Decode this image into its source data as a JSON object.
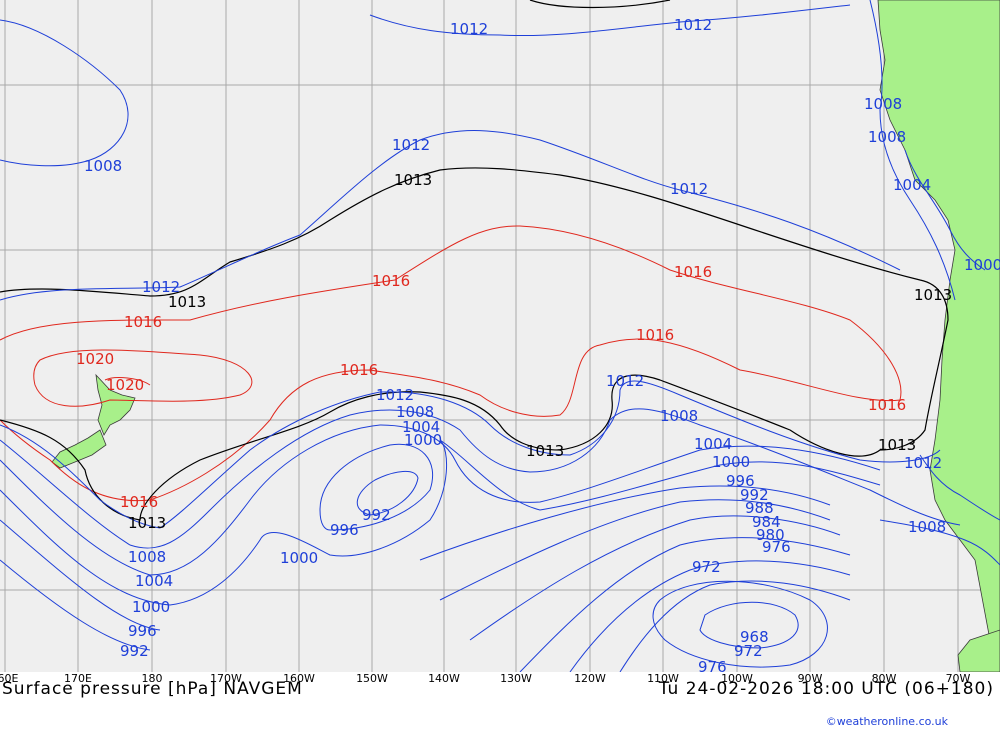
{
  "map": {
    "title": "Surface pressure [hPa] NAVGEM",
    "valid_time": "Tu 24-02-2026 18:00 UTC (06+180)",
    "credit": "©weatheronline.co.uk",
    "longitude_labels": [
      "60E",
      "170E",
      "180",
      "170W",
      "160W",
      "150W",
      "140W",
      "130W",
      "120W",
      "110W",
      "100W",
      "90W",
      "80W",
      "70W"
    ],
    "colors": {
      "below_1013": "#1e3fd8",
      "above_1013": "#e0281e",
      "reference_1013": "#000000",
      "land": "#a8f08a",
      "sea": "#efefef"
    },
    "isobar_labels": {
      "blue": [
        "1012",
        "1012",
        "1008",
        "1012",
        "1012",
        "1008",
        "1008",
        "1004",
        "1000",
        "1012",
        "1012",
        "1008",
        "1004",
        "1000",
        "1012",
        "1008",
        "1004",
        "1000",
        "996",
        "992",
        "992",
        "996",
        "1000",
        "1008",
        "1004",
        "1000",
        "996",
        "992",
        "988",
        "984",
        "980",
        "976",
        "972",
        "968",
        "972",
        "976",
        "1012",
        "1008"
      ],
      "red": [
        "1016",
        "1016",
        "1020",
        "1020",
        "1016",
        "1016",
        "1016",
        "1016",
        "1016"
      ],
      "black": [
        "1013",
        "1013",
        "1013",
        "1013",
        "1013",
        "1013"
      ]
    }
  }
}
